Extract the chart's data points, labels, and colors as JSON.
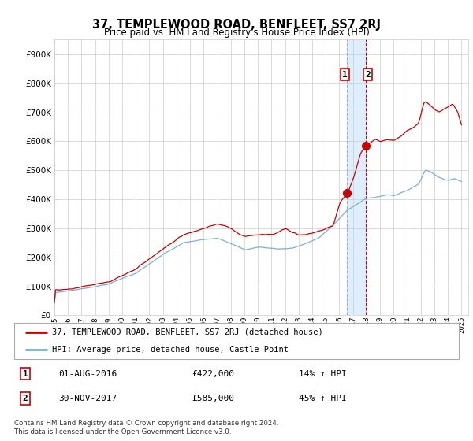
{
  "title": "37, TEMPLEWOOD ROAD, BENFLEET, SS7 2RJ",
  "subtitle": "Price paid vs. HM Land Registry's House Price Index (HPI)",
  "legend_line1": "37, TEMPLEWOOD ROAD, BENFLEET, SS7 2RJ (detached house)",
  "legend_line2": "HPI: Average price, detached house, Castle Point",
  "transaction1_date": "01-AUG-2016",
  "transaction1_price": "£422,000",
  "transaction1_hpi": "14% ↑ HPI",
  "transaction2_date": "30-NOV-2017",
  "transaction2_price": "£585,000",
  "transaction2_hpi": "45% ↑ HPI",
  "footer": "Contains HM Land Registry data © Crown copyright and database right 2024.\nThis data is licensed under the Open Government Licence v3.0.",
  "red_line_color": "#cc0000",
  "blue_line_color": "#7bafd4",
  "marker_color": "#cc0000",
  "grid_color": "#cccccc",
  "background_color": "#ffffff",
  "plot_bg_color": "#ffffff",
  "highlight_band_color": "#ddeeff",
  "ylim": [
    0,
    950000
  ],
  "yticks": [
    0,
    100000,
    200000,
    300000,
    400000,
    500000,
    600000,
    700000,
    800000,
    900000
  ],
  "transaction1_x": 2016.58,
  "transaction1_y": 422000,
  "transaction2_x": 2017.92,
  "transaction2_y": 585000,
  "xmin": 1995,
  "xmax": 2025.5
}
